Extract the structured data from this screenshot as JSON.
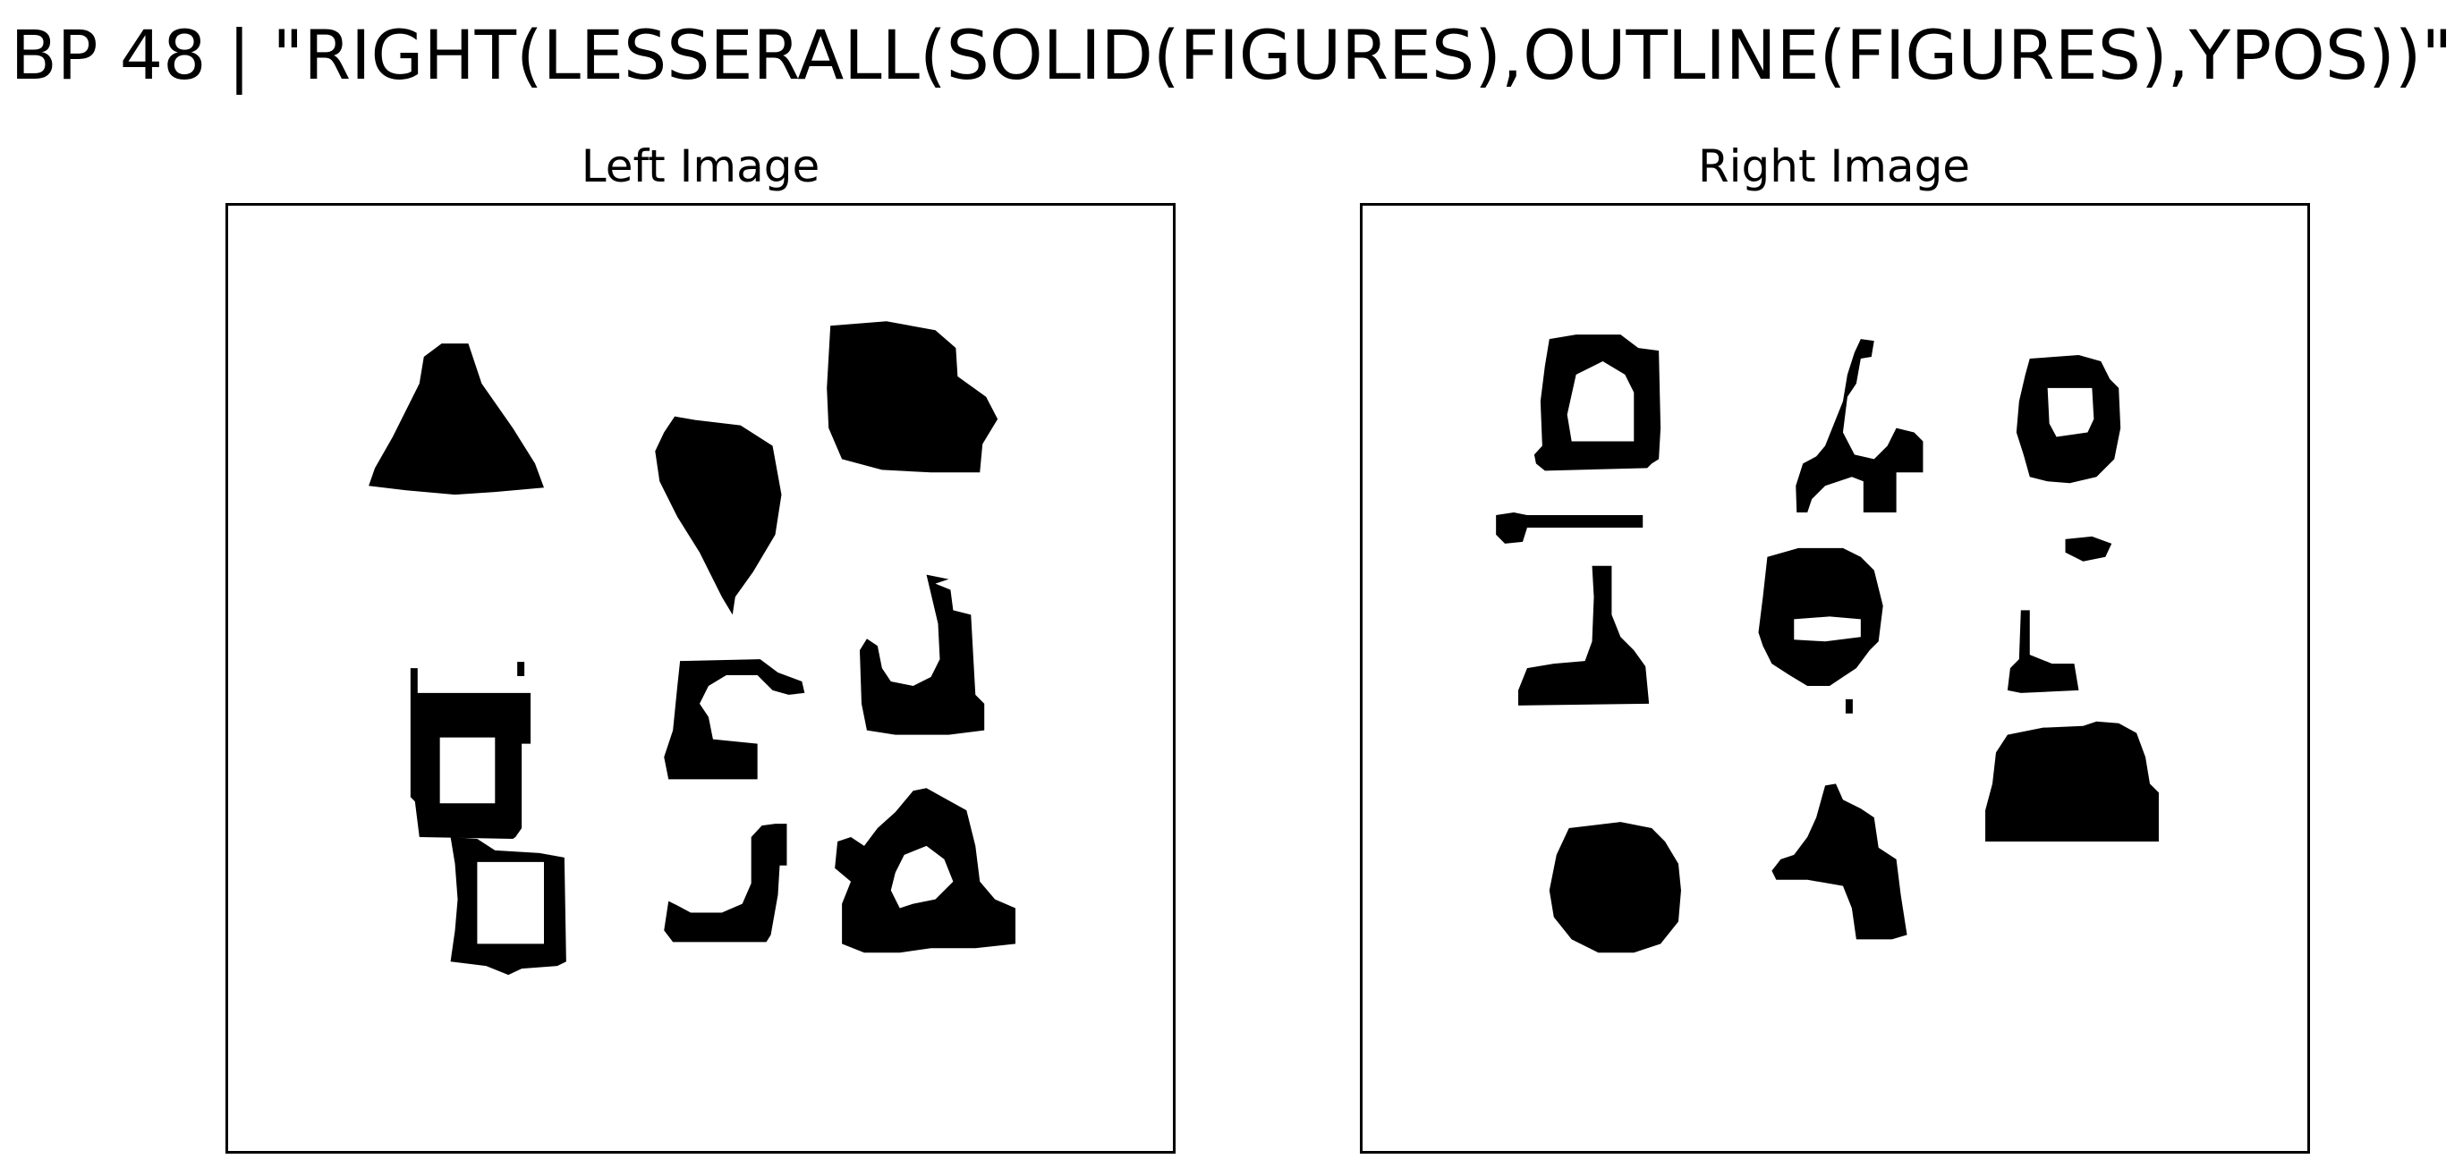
{
  "title": "BP 48 | \"RIGHT(LESSERALL(SOLID(FIGURES),OUTLINE(FIGURES),YPOS))\"",
  "panels": {
    "left": {
      "title": "Left Image"
    },
    "right": {
      "title": "Right Image"
    }
  },
  "colors": {
    "ink": "#000000",
    "paper": "#ffffff"
  }
}
